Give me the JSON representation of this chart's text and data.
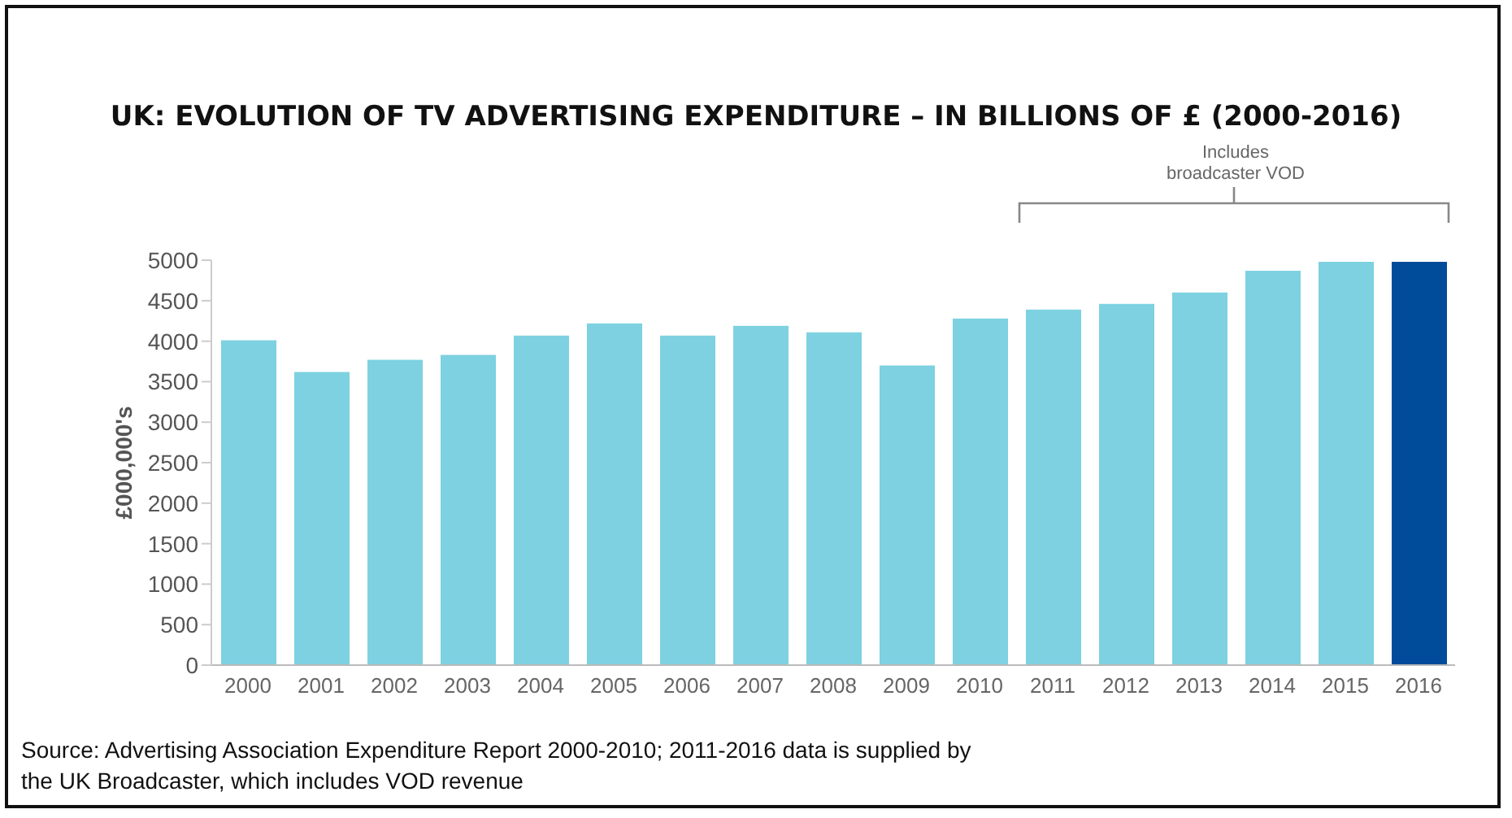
{
  "chart_data": {
    "type": "bar",
    "title": "UK: EVOLUTION OF TV ADVERTISING EXPENDITURE – IN BILLIONS OF £ (2000-2016)",
    "ylabel": "£000,000's",
    "categories": [
      "2000",
      "2001",
      "2002",
      "2003",
      "2004",
      "2005",
      "2006",
      "2007",
      "2008",
      "2009",
      "2010",
      "2011",
      "2012",
      "2013",
      "2014",
      "2015",
      "2016"
    ],
    "values": [
      4010,
      3620,
      3770,
      3830,
      4070,
      4220,
      4070,
      4190,
      4110,
      3700,
      4280,
      4390,
      4460,
      4600,
      4870,
      4980,
      4980
    ],
    "colors": [
      "#7dd1e0",
      "#7dd1e0",
      "#7dd1e0",
      "#7dd1e0",
      "#7dd1e0",
      "#7dd1e0",
      "#7dd1e0",
      "#7dd1e0",
      "#7dd1e0",
      "#7dd1e0",
      "#7dd1e0",
      "#7dd1e0",
      "#7dd1e0",
      "#7dd1e0",
      "#7dd1e0",
      "#7dd1e0",
      "#004c9a"
    ],
    "ylim": [
      0,
      5000
    ],
    "yticks": [
      0,
      500,
      1000,
      1500,
      2000,
      2500,
      3000,
      3500,
      4000,
      4500,
      5000
    ],
    "grid": false,
    "legend": false,
    "annotations": [
      "Includes broadcaster VOD",
      "Source: Advertising Association Expenditure Report 2000-2010; 2011-2016 data is supplied by the UK Broadcaster, which includes VOD revenue"
    ]
  }
}
